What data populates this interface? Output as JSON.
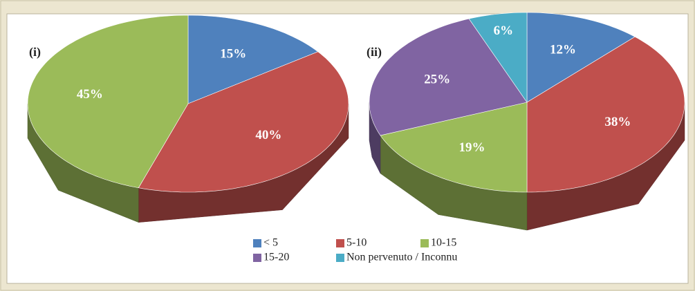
{
  "chart_data": [
    {
      "type": "pie",
      "title": "(i)",
      "categories": [
        "< 5",
        "5-10",
        "10-15"
      ],
      "values": [
        15,
        40,
        45
      ],
      "value_labels": [
        "15%",
        "40%",
        "45%"
      ],
      "colors": [
        "#4f81bd",
        "#c0504d",
        "#9bbb59"
      ]
    },
    {
      "type": "pie",
      "title": "(ii)",
      "categories": [
        "< 5",
        "5-10",
        "10-15",
        "15-20",
        "Non pervenuto / Inconnu"
      ],
      "values": [
        12,
        38,
        19,
        25,
        6
      ],
      "value_labels": [
        "12%",
        "38%",
        "19%",
        "25%",
        "6%"
      ],
      "colors": [
        "#4f81bd",
        "#c0504d",
        "#9bbb59",
        "#8064a2",
        "#4bacc6"
      ]
    }
  ]
}
